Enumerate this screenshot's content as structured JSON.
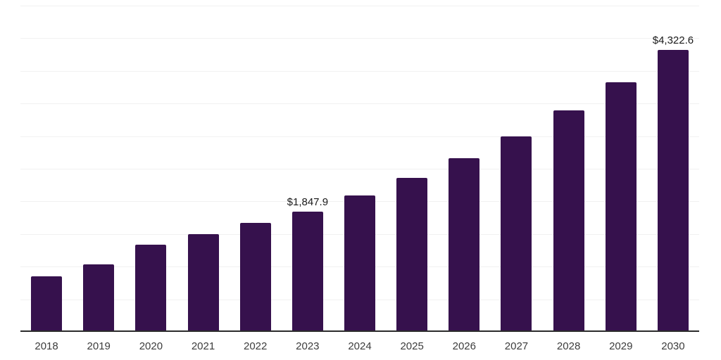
{
  "chart_data": {
    "type": "bar",
    "title": "",
    "categories": [
      "2018",
      "2019",
      "2020",
      "2021",
      "2022",
      "2023",
      "2024",
      "2025",
      "2026",
      "2027",
      "2028",
      "2029",
      "2030"
    ],
    "values": [
      850,
      1030,
      1340,
      1495,
      1675,
      1847.9,
      2090,
      2360,
      2660,
      3000,
      3390,
      3830,
      4322.6
    ],
    "data_labels": [
      "",
      "",
      "",
      "",
      "",
      "$1,847.9",
      "",
      "",
      "",
      "",
      "",
      "",
      "$4,322.6"
    ],
    "ylim": [
      0,
      5000
    ],
    "gridline_step": 500,
    "grid": true,
    "legend": false,
    "xlabel": "",
    "ylabel": "",
    "bar_color": "#36114D",
    "gridline_color": "#f1f1f1",
    "axis_line_color": "#2b2b2b",
    "label_text_color": "#1a1a1a",
    "tick_text_color": "#3c3c3c"
  }
}
